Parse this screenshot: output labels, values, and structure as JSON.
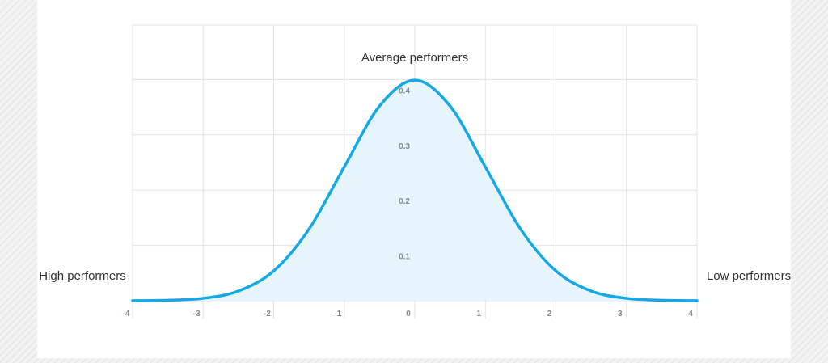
{
  "chart_data": {
    "type": "area",
    "distribution": "standard normal",
    "title": "",
    "xlabel": "",
    "ylabel": "",
    "xlim": [
      -4,
      4
    ],
    "ylim": [
      0,
      0.5
    ],
    "x_ticks": [
      "-4",
      "-3",
      "-2",
      "-1",
      "0",
      "1",
      "2",
      "3",
      "4"
    ],
    "y_ticks": [
      "0.1",
      "0.2",
      "0.3",
      "0.4"
    ],
    "x": [
      -4,
      -3.5,
      -3,
      -2.5,
      -2,
      -1.5,
      -1,
      -0.5,
      0,
      0.5,
      1,
      1.5,
      2,
      2.5,
      3,
      3.5,
      4
    ],
    "y": [
      0.0001,
      0.0009,
      0.0044,
      0.0175,
      0.054,
      0.1295,
      0.242,
      0.3521,
      0.3989,
      0.3521,
      0.242,
      0.1295,
      0.054,
      0.0175,
      0.0044,
      0.0009,
      0.0001
    ],
    "grid": true,
    "colors": {
      "line": "#14a9e6",
      "fill": "#e6f5fc",
      "grid": "#e3e3e3"
    },
    "annotations": [
      {
        "text": "Average performers",
        "x": 0,
        "y": 0.44
      },
      {
        "text": "High performers",
        "x": -4,
        "y": 0.045
      },
      {
        "text": "Low performers",
        "x": 4,
        "y": 0.045
      }
    ]
  }
}
